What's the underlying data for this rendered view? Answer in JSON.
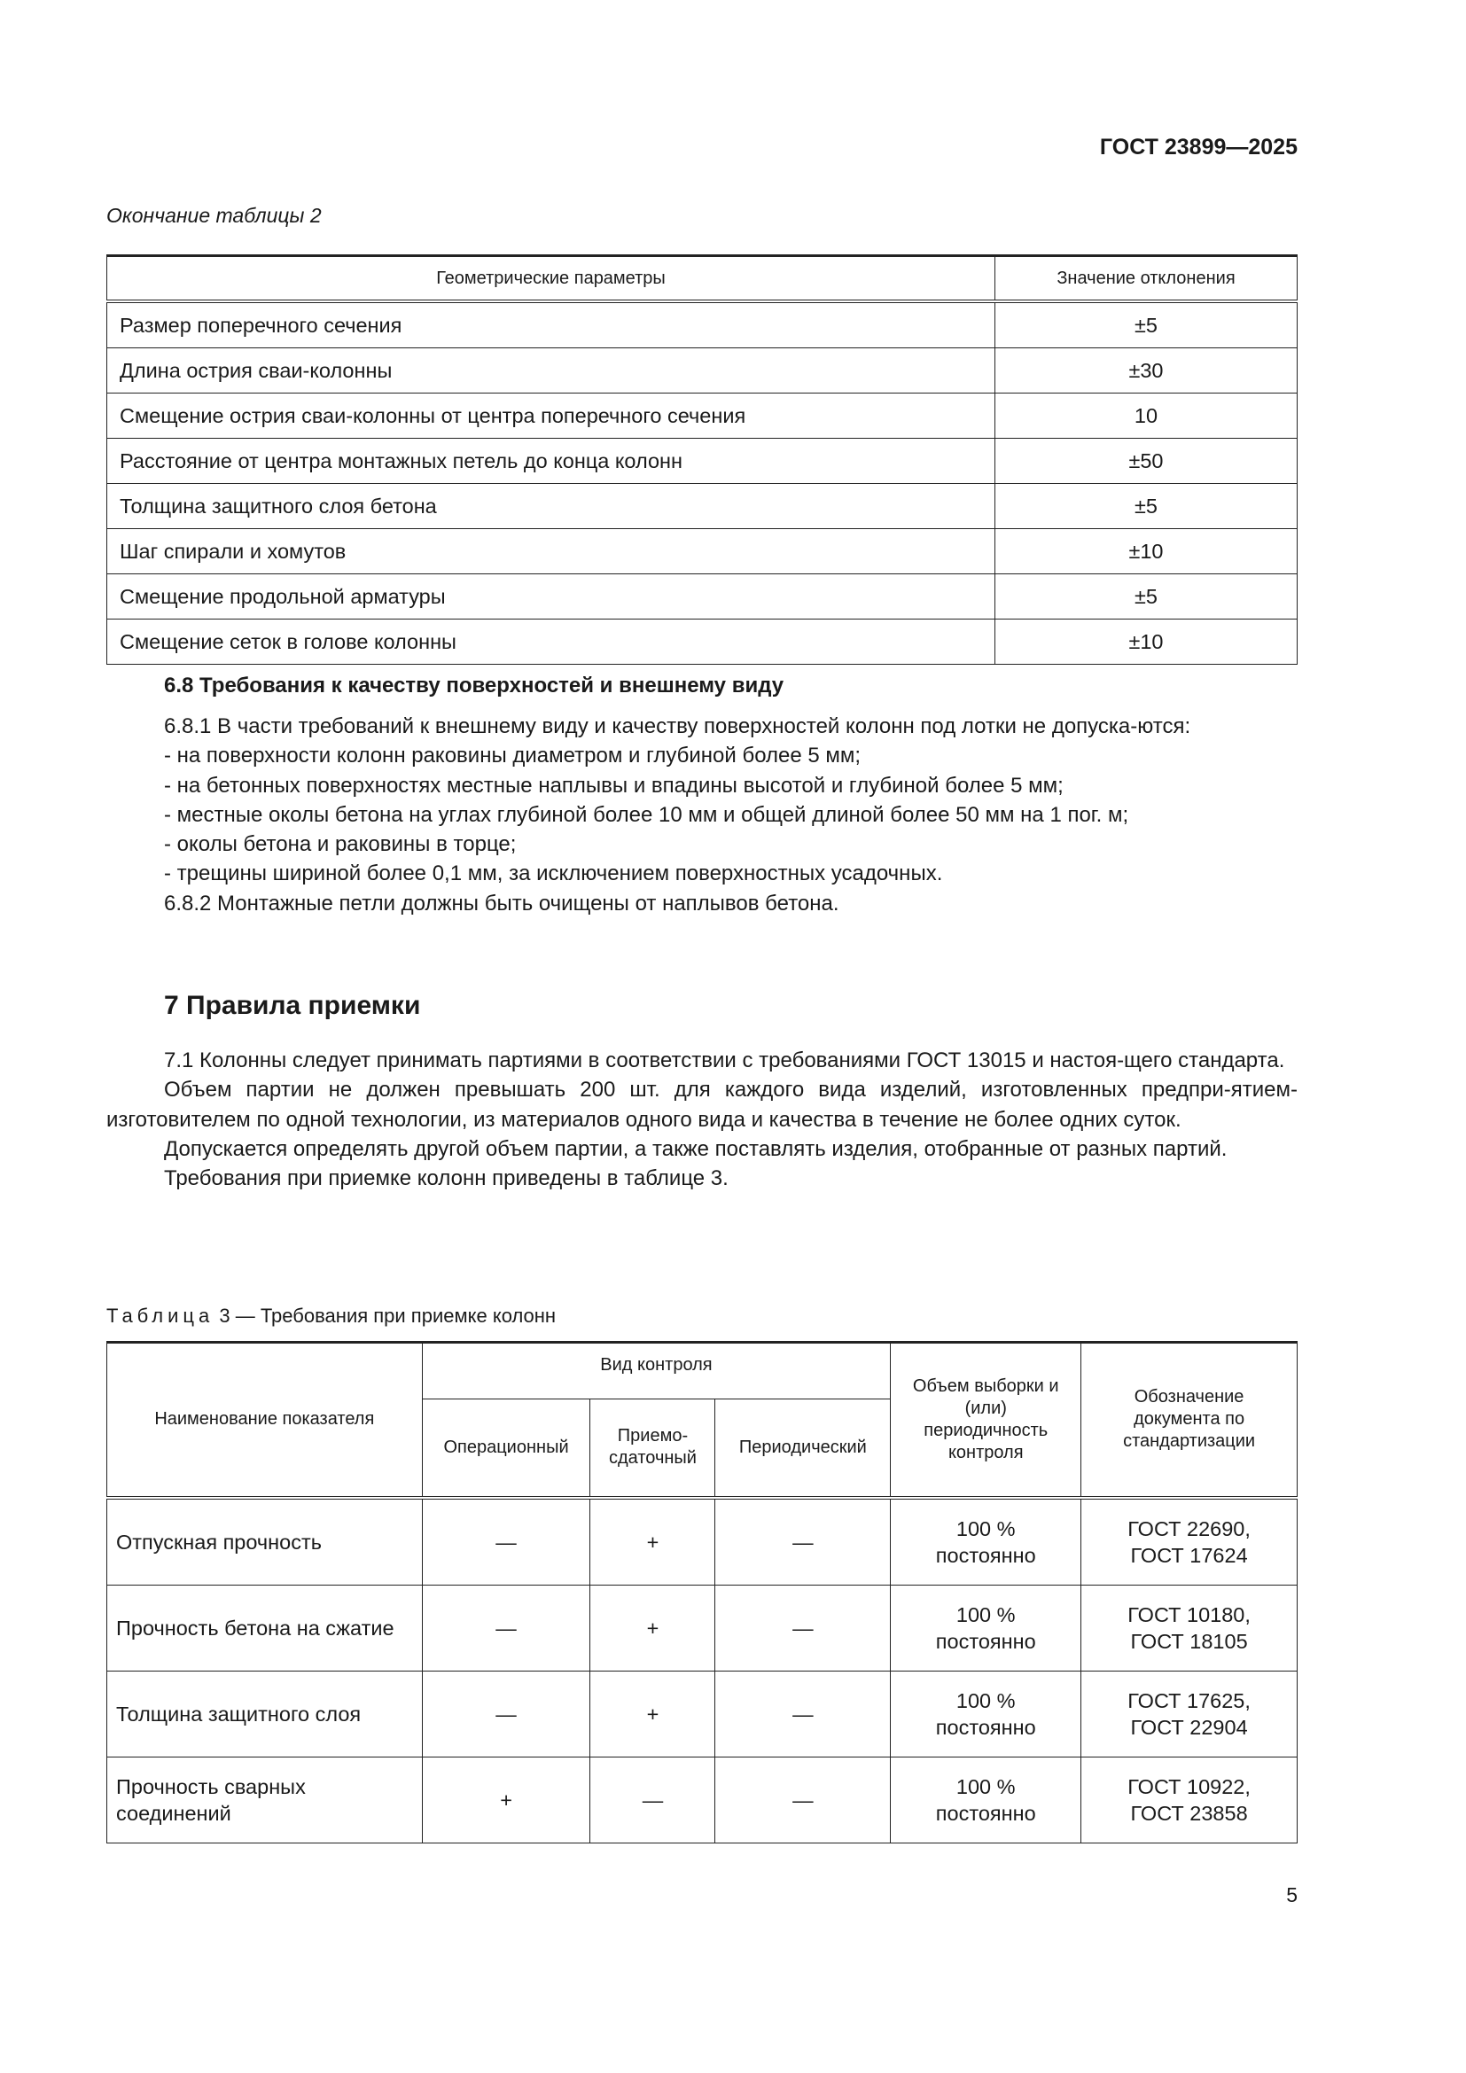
{
  "header": {
    "doc_code": "ГОСТ 23899—2025"
  },
  "table2": {
    "caption": "Окончание таблицы 2",
    "columns": [
      "Геометрические параметры",
      "Значение отклонения"
    ],
    "rows": [
      [
        "Размер поперечного сечения",
        "±5"
      ],
      [
        "Длина острия сваи-колонны",
        "±30"
      ],
      [
        "Смещение острия сваи-колонны от центра поперечного сечения",
        "10"
      ],
      [
        "Расстояние от центра монтажных петель до конца колонн",
        "±50"
      ],
      [
        "Толщина защитного слоя бетона",
        "±5"
      ],
      [
        "Шаг спирали и хомутов",
        "±10"
      ],
      [
        "Смещение продольной арматуры",
        "±5"
      ],
      [
        "Смещение сеток в голове колонны",
        "±10"
      ]
    ]
  },
  "section_6_8": {
    "heading": "6.8 Требования к качеству поверхностей и внешнему виду",
    "p1": "6.8.1 В части требований к внешнему виду и качеству поверхностей колонн под лотки не допуска-ются:",
    "items": [
      "- на поверхности колонн раковины диаметром и глубиной более 5 мм;",
      "- на бетонных поверхностях местные наплывы и впадины высотой и глубиной более 5 мм;",
      "- местные околы бетона на углах глубиной более 10 мм и общей длиной более 50 мм на 1 пог. м;",
      "- околы бетона и раковины в торце;",
      "- трещины шириной более 0,1 мм, за исключением поверхностных усадочных."
    ],
    "p2": "6.8.2 Монтажные петли должны быть очищены от наплывов бетона."
  },
  "section_7": {
    "heading": "7 Правила приемки",
    "paragraphs": [
      "7.1 Колонны следует принимать партиями в соответствии с требованиями ГОСТ 13015 и настоя-щего стандарта.",
      "Объем партии не должен превышать 200 шт. для каждого вида изделий, изготовленных предпри-ятием-изготовителем по одной технологии, из материалов одного вида и качества в течение не более одних суток.",
      "Допускается определять другой объем партии, а также поставлять изделия, отобранные от разных партий.",
      "Требования при приемке колонн приведены в таблице 3."
    ]
  },
  "table3": {
    "caption_label": "Таблица",
    "caption_rest": "3 — Требования при приемке колонн",
    "headers": {
      "name": "Наименование показателя",
      "control_type": "Вид контроля",
      "operational": "Операционный",
      "acceptance": "Приемо-сдаточный",
      "periodic": "Периодический",
      "sample": "Объем выборки и (или) периодичность контроля",
      "document": "Обозначение документа по стандартизации"
    },
    "rows": [
      {
        "name": "Отпускная прочность",
        "op": "—",
        "acc": "+",
        "per": "—",
        "sample1": "100 %",
        "sample2": "постоянно",
        "doc1": "ГОСТ 22690,",
        "doc2": "ГОСТ 17624"
      },
      {
        "name": "Прочность бетона на сжатие",
        "op": "—",
        "acc": "+",
        "per": "—",
        "sample1": "100 %",
        "sample2": "постоянно",
        "doc1": "ГОСТ 10180,",
        "doc2": "ГОСТ 18105"
      },
      {
        "name": "Толщина защитного слоя",
        "op": "—",
        "acc": "+",
        "per": "—",
        "sample1": "100 %",
        "sample2": "постоянно",
        "doc1": "ГОСТ 17625,",
        "doc2": "ГОСТ 22904"
      },
      {
        "name": "Прочность сварных соединений",
        "op": "+",
        "acc": "—",
        "per": "—",
        "sample1": "100 %",
        "sample2": "постоянно",
        "doc1": "ГОСТ 10922,",
        "doc2": "ГОСТ 23858"
      }
    ]
  },
  "footer": {
    "page_number": "5"
  }
}
